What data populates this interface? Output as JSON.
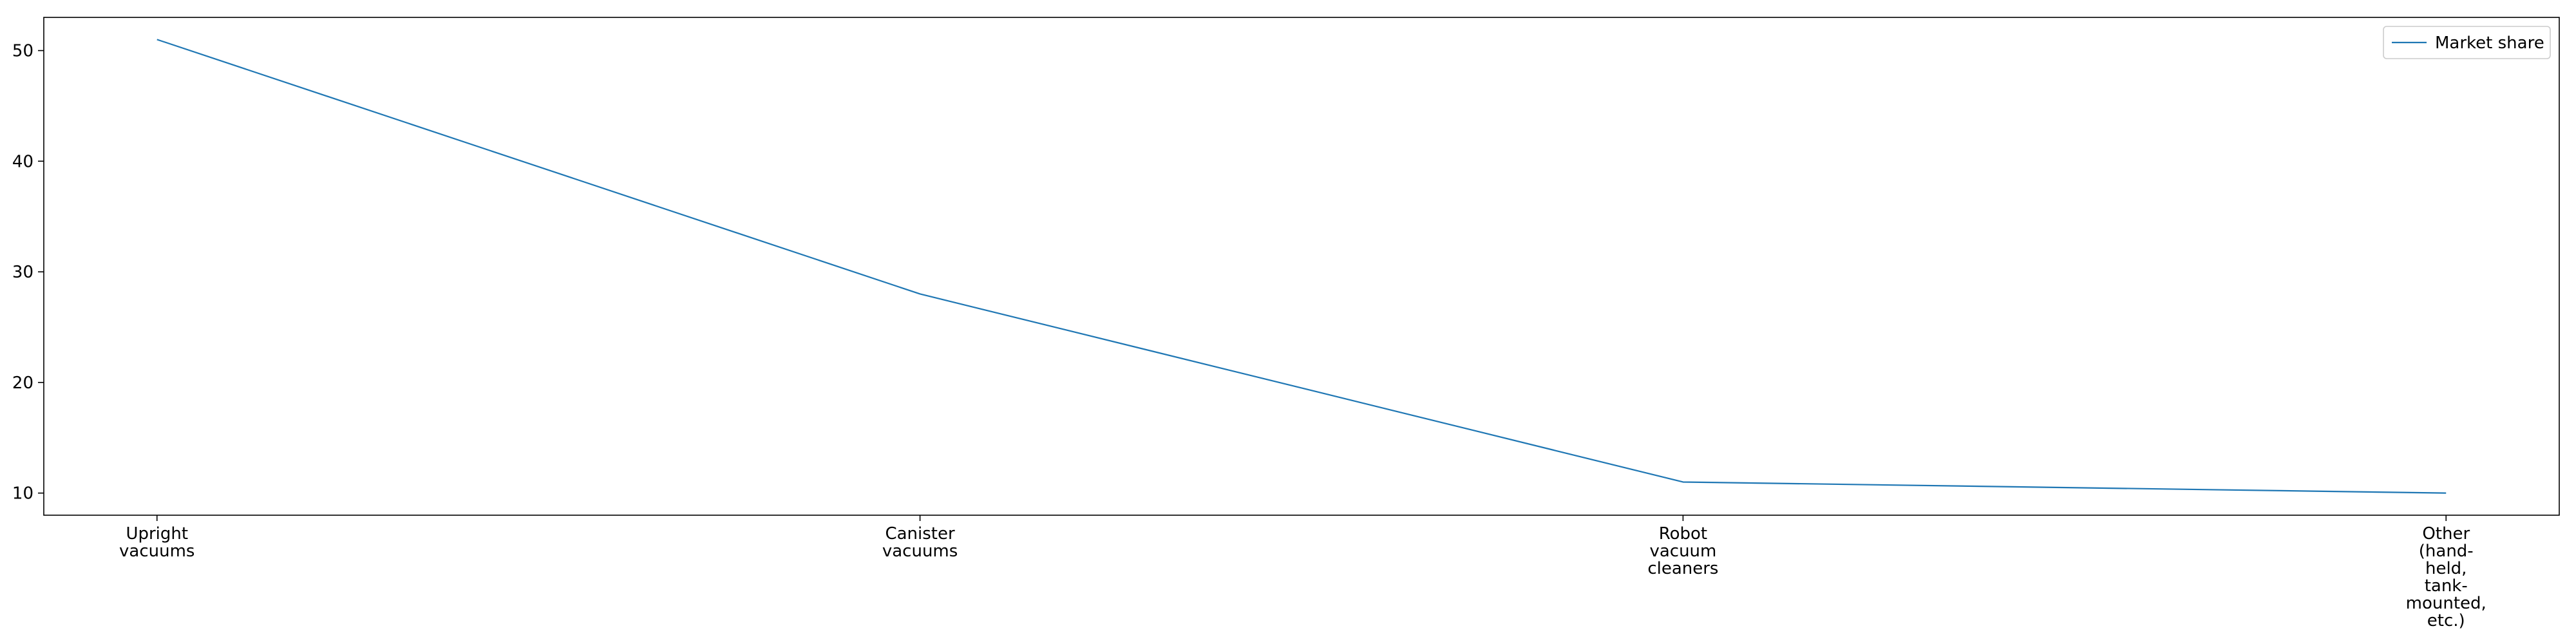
{
  "chart_data": {
    "type": "line",
    "categories": [
      "Upright\nvacuums",
      "Canister\nvacuums",
      "Robot\nvacuum\ncleaners",
      "Other\n(hand-\nheld,\ntank-\nmounted,\netc.)"
    ],
    "series": [
      {
        "name": "Market share",
        "values": [
          51,
          28,
          11,
          10
        ],
        "color": "#1f77b4"
      }
    ],
    "title": "",
    "xlabel": "",
    "ylabel": "",
    "ylim": [
      8.0,
      53.0
    ],
    "yticks": [
      10,
      20,
      30,
      40,
      50
    ],
    "grid": false,
    "legend_position": "top-right"
  }
}
